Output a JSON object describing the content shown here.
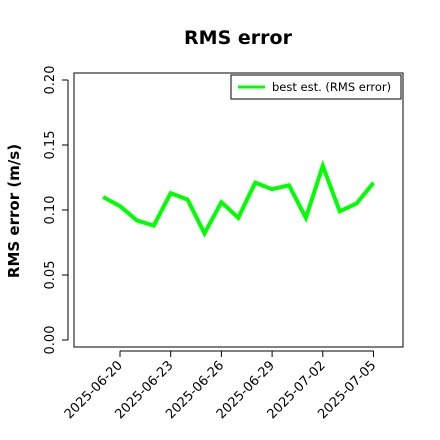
{
  "chart_data": {
    "type": "line",
    "title": "RMS error",
    "xlabel": "",
    "ylabel": "RMS error (m/s)",
    "ylim": [
      0,
      0.2
    ],
    "yticks": [
      "0.00",
      "0.05",
      "0.10",
      "0.15",
      "0.20"
    ],
    "ytick_values": [
      0,
      0.05,
      0.1,
      0.15,
      0.2
    ],
    "xticks": [
      "2025-06-20",
      "2025-06-23",
      "2025-06-26",
      "2025-06-29",
      "2025-07-02",
      "2025-07-05"
    ],
    "xtick_colors": [
      "#000000",
      "#000000",
      "#228B22",
      "#000000",
      "#000000",
      "#000000"
    ],
    "grid": false,
    "legend_position": "top-right",
    "series": [
      {
        "name": "best est. (RMS error)",
        "color": "#00ff00",
        "x": [
          "2025-06-19",
          "2025-06-20",
          "2025-06-21",
          "2025-06-22",
          "2025-06-23",
          "2025-06-24",
          "2025-06-25",
          "2025-06-26",
          "2025-06-27",
          "2025-06-28",
          "2025-06-29",
          "2025-06-30",
          "2025-07-01",
          "2025-07-02",
          "2025-07-03",
          "2025-07-04",
          "2025-07-05"
        ],
        "values": [
          0.11,
          0.103,
          0.092,
          0.088,
          0.113,
          0.108,
          0.082,
          0.106,
          0.094,
          0.121,
          0.116,
          0.119,
          0.094,
          0.134,
          0.099,
          0.105,
          0.121
        ]
      }
    ]
  }
}
